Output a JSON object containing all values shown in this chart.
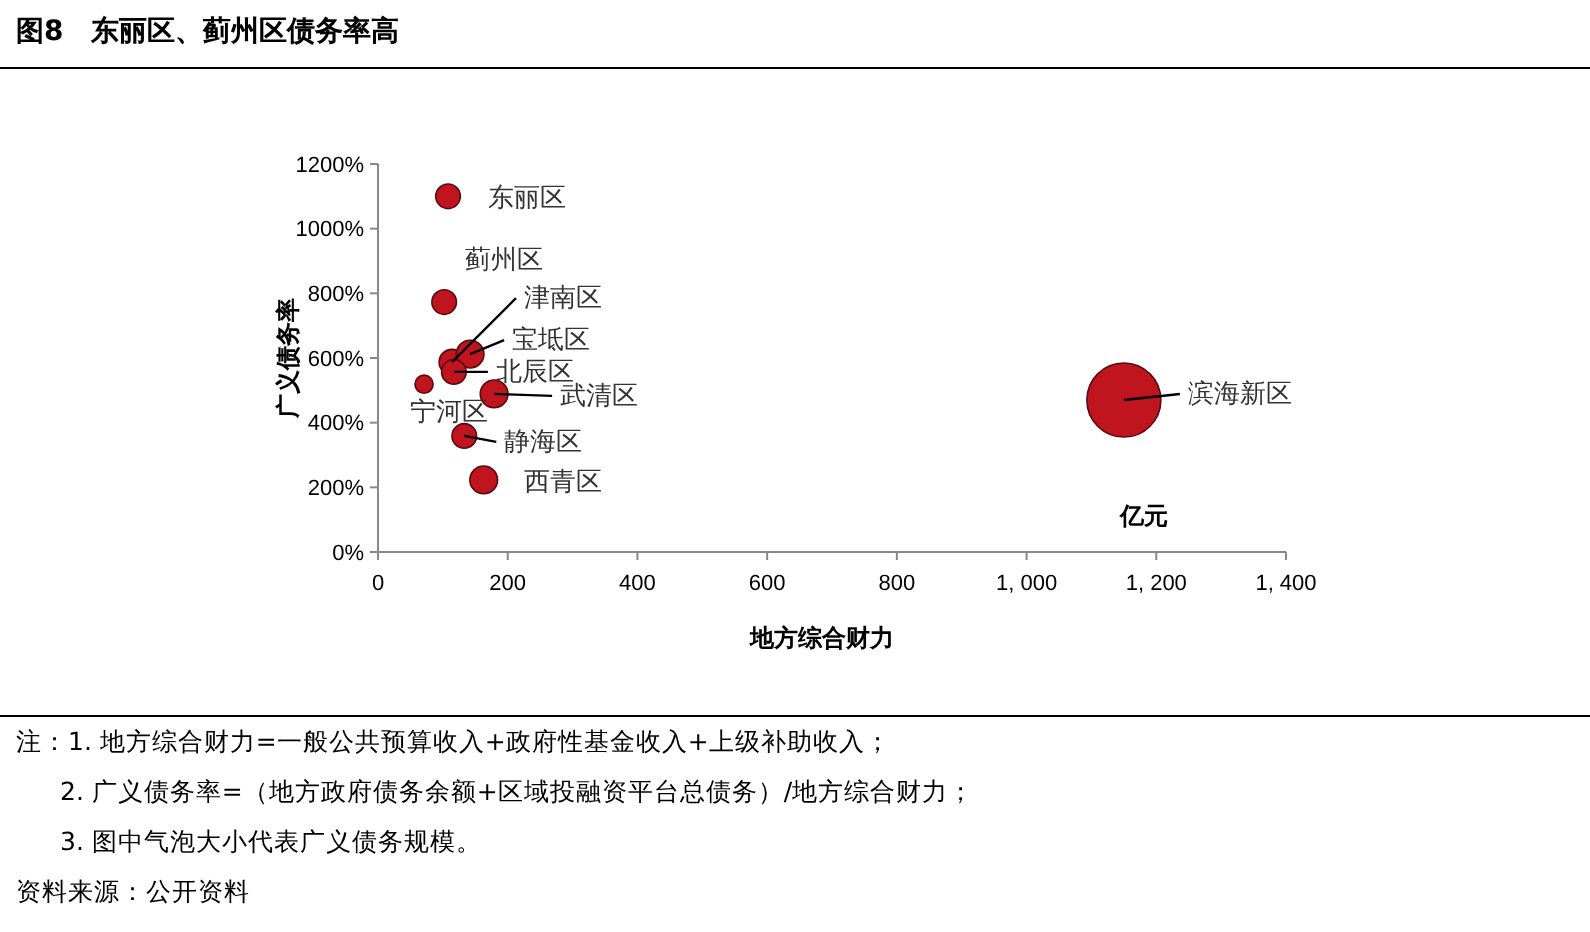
{
  "chart_data": {
    "type": "bubble",
    "title": "图8　东丽区、蓟州区债务率高",
    "xlabel": "地方综合财力",
    "ylabel": "广义债务率",
    "x": [
      108,
      102,
      114,
      142,
      117,
      71,
      179,
      133,
      163,
      1150
    ],
    "series": [
      {
        "color": "#c0141e",
        "values": [
          1100,
          773,
          587,
          612,
          557,
          519,
          489,
          359,
          223,
          470
        ],
        "sizes": [
          0.11,
          0.11,
          0.12,
          0.14,
          0.11,
          0.06,
          0.14,
          0.11,
          0.14,
          1
        ]
      }
    ],
    "xlim": [
      0,
      1400
    ],
    "xticks": [
      0,
      200,
      400,
      600,
      800,
      {
        "value": 1000,
        "label": "1, 000"
      },
      {
        "value": 1200,
        "label": "1, 200"
      },
      {
        "value": 1400,
        "label": "1, 400"
      }
    ],
    "ylim": [
      0,
      1200
    ],
    "yticks": [
      {
        "value": 0,
        "label": "0%"
      },
      {
        "value": 200,
        "label": "200%"
      },
      {
        "value": 400,
        "label": "400%"
      },
      {
        "value": 600,
        "label": "600%"
      },
      {
        "value": 800,
        "label": "800%"
      },
      {
        "value": 1000,
        "label": "1000%"
      },
      {
        "value": 1200,
        "label": "1200%"
      }
    ],
    "grid": false,
    "annotations": [
      {
        "text": "东丽区",
        "x": 108,
        "y": 1100
      },
      {
        "text": "蓟州区",
        "x": 102,
        "y": 773
      },
      {
        "text": "津南区",
        "x": 114,
        "y": 587
      },
      {
        "text": "宝坻区",
        "x": 142,
        "y": 612
      },
      {
        "text": "北辰区",
        "x": 117,
        "y": 557
      },
      {
        "text": "宁河区",
        "x": 71,
        "y": 519
      },
      {
        "text": "武清区",
        "x": 179,
        "y": 489
      },
      {
        "text": "静海区",
        "x": 133,
        "y": 359
      },
      {
        "text": "西青区",
        "x": 163,
        "y": 223
      },
      {
        "text": "滨海新区",
        "x": 1150,
        "y": 470
      },
      "亿元",
      "注：1. 地方综合财力=一般公共预算收入+政府性基金收入+上级补助收入；",
      "2. 广义债务率=（地方政府债务余额+区域投融资平台总债务）/地方综合财力；",
      "3. 图中气泡大小代表广义债务规模。",
      "资料来源：公开资料"
    ]
  }
}
